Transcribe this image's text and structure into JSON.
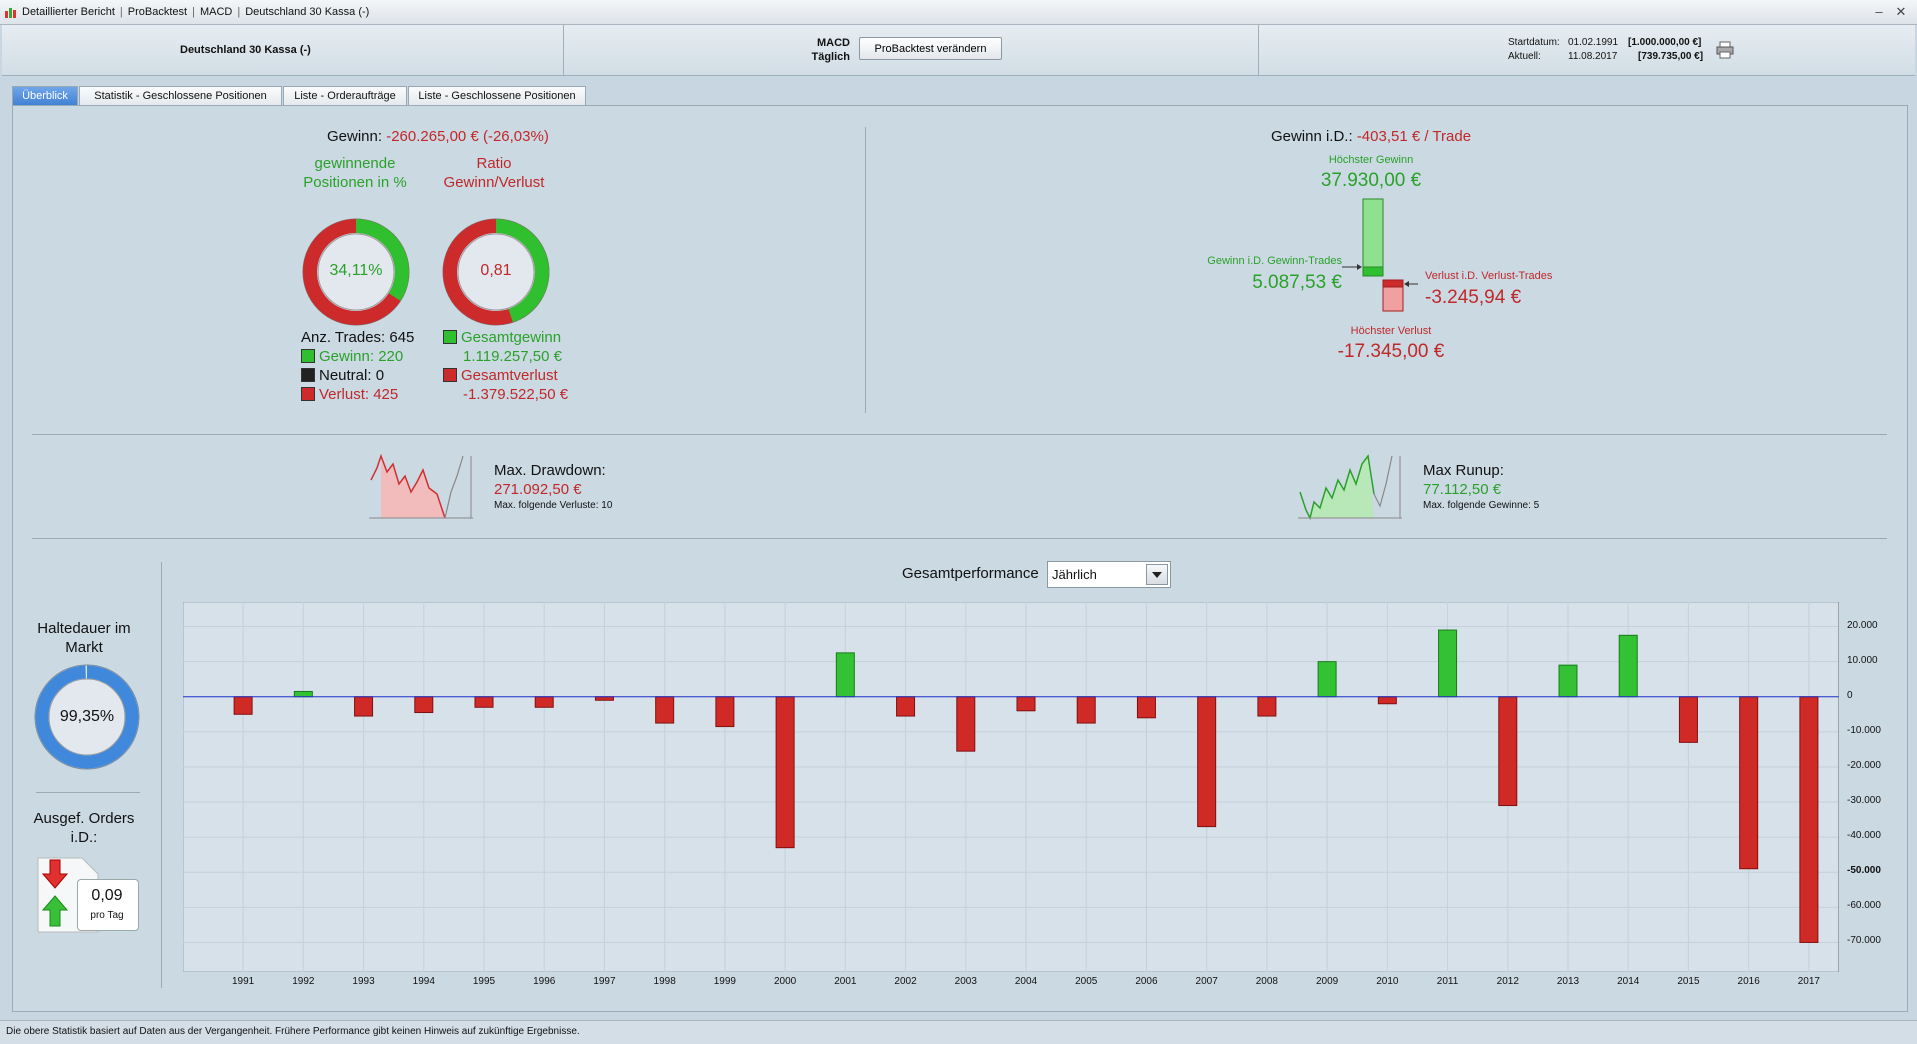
{
  "breadcrumbs": [
    "Detaillierter Bericht",
    "ProBacktest",
    "MACD",
    "Deutschland 30 Kassa (-)"
  ],
  "header": {
    "instrument": "Deutschland 30 Kassa (-)",
    "strategy": "MACD",
    "timeframe": "Täglich",
    "edit_button": "ProBacktest verändern",
    "start_label": "Startdatum:",
    "start_date": "01.02.1991",
    "start_value": "[1.000.000,00 €]",
    "current_label": "Aktuell:",
    "current_date": "11.08.2017",
    "current_value": "[739.735,00 €]"
  },
  "tabs": [
    "Überblick",
    "Statistik - Geschlossene Positionen",
    "Liste - Orderaufträge",
    "Liste - Geschlossene Positionen"
  ],
  "summary": {
    "gain_label": "Gewinn:",
    "gain_value": "-260.265,00 € (-26,03%)",
    "win_pct_title": "gewinnende Positionen in %",
    "win_pct_value": "34,11%",
    "win_pct_fraction": 0.3411,
    "ratio_title": "Ratio Gewinn/Verlust",
    "ratio_value": "0,81",
    "ratio_fraction": 0.4475,
    "trades_label": "Anz. Trades: 645",
    "win_trades": "Gewinn: 220",
    "neutral_trades": "Neutral: 0",
    "loss_trades": "Verlust: 425",
    "total_gain_label": "Gesamtgewinn",
    "total_gain_value": "1.119.257,50 €",
    "total_loss_label": "Gesamtverlust",
    "total_loss_value": "-1.379.522,50 €"
  },
  "per_trade": {
    "title_label": "Gewinn i.D.:",
    "title_value": "-403,51 € / Trade",
    "max_gain_label": "Höchster Gewinn",
    "max_gain_value": "37.930,00 €",
    "avg_gain_label": "Gewinn i.D. Gewinn-Trades",
    "avg_gain_value": "5.087,53 €",
    "avg_loss_label": "Verlust i.D. Verlust-Trades",
    "avg_loss_value": "-3.245,94 €",
    "max_loss_label": "Höchster Verlust",
    "max_loss_value": "-17.345,00 €"
  },
  "drawdown": {
    "label": "Max. Drawdown:",
    "value": "271.092,50 €",
    "sub": "Max. folgende Verluste: 10"
  },
  "runup": {
    "label": "Max Runup:",
    "value": "77.112,50 €",
    "sub": "Max. folgende Gewinne: 5"
  },
  "market": {
    "title": "Haltedauer im Markt",
    "value": "99,35%",
    "fraction": 0.9935,
    "orders_title": "Ausgef. Orders i.D.:",
    "orders_value": "0,09",
    "orders_unit": "pro Tag"
  },
  "performance": {
    "title": "Gesamtperformance",
    "period_selected": "Jährlich"
  },
  "colors": {
    "gain": "#2aa12a",
    "loss": "#c0282a",
    "accent": "#3f7fd3"
  },
  "chart_data": {
    "type": "bar",
    "categories": [
      "1991",
      "1992",
      "1993",
      "1994",
      "1995",
      "1996",
      "1997",
      "1998",
      "1999",
      "2000",
      "2001",
      "2002",
      "2003",
      "2004",
      "2005",
      "2006",
      "2007",
      "2008",
      "2009",
      "2010",
      "2011",
      "2012",
      "2013",
      "2014",
      "2015",
      "2016",
      "2017"
    ],
    "values": [
      -5000,
      1500,
      -5500,
      -4500,
      -3000,
      -3000,
      -1000,
      -7500,
      -8500,
      -43000,
      12500,
      -5500,
      -15500,
      -4000,
      -7500,
      -6000,
      -37000,
      -5500,
      10000,
      -2000,
      19000,
      -31000,
      9000,
      17500,
      -13000,
      -49000,
      -70000
    ],
    "ylim": [
      -75000,
      23000
    ],
    "yticks": [
      "20.000",
      "10.000",
      "0",
      "-10.000",
      "-20.000",
      "-30.000",
      "-40.000",
      "-50.000",
      "-60.000",
      "-70.000"
    ],
    "ytick_values": [
      20000,
      10000,
      0,
      -10000,
      -20000,
      -30000,
      -40000,
      -50000,
      -60000,
      -70000
    ],
    "grid": true
  },
  "footer": "Die obere Statistik basiert auf Daten aus der Vergangenheit. Frühere Performance gibt keinen Hinweis auf zukünftige Ergebnisse."
}
